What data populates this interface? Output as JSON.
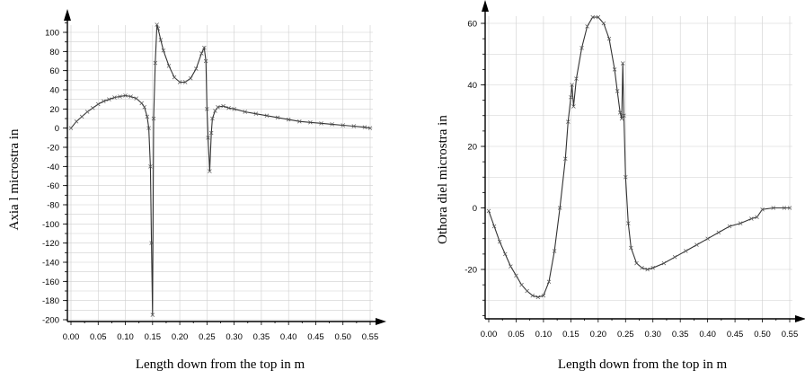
{
  "chart_data": [
    {
      "type": "line",
      "xlabel": "Length down from the top in m",
      "ylabel": "Axia l microstra in",
      "xlim": [
        0,
        0.56
      ],
      "ylim": [
        -200,
        110
      ],
      "xticks": [
        "0.00",
        "0.05",
        "0.10",
        "0.15",
        "0.20",
        "0.25",
        "0.30",
        "0.35",
        "0.40",
        "0.45",
        "0.50",
        "0.55"
      ],
      "yticks": [
        "100",
        "80",
        "60",
        "40",
        "20",
        "0",
        "-20",
        "-40",
        "-60",
        "-80",
        "-100",
        "-120",
        "-140",
        "-160",
        "-180",
        "-200"
      ],
      "grid": true,
      "series": [
        {
          "x": [
            0.0,
            0.01,
            0.02,
            0.03,
            0.04,
            0.05,
            0.06,
            0.07,
            0.08,
            0.09,
            0.1,
            0.11,
            0.12,
            0.13,
            0.135,
            0.14,
            0.143,
            0.146,
            0.148,
            0.15,
            0.152,
            0.155,
            0.158,
            0.16,
            0.165,
            0.17,
            0.18,
            0.19,
            0.2,
            0.21,
            0.22,
            0.23,
            0.24,
            0.245,
            0.248,
            0.25,
            0.252,
            0.255,
            0.258,
            0.26,
            0.265,
            0.27,
            0.28,
            0.29,
            0.3,
            0.32,
            0.34,
            0.36,
            0.38,
            0.4,
            0.42,
            0.44,
            0.46,
            0.48,
            0.5,
            0.52,
            0.54,
            0.55
          ],
          "y": [
            0,
            7,
            12,
            17,
            21,
            25,
            28,
            30,
            32,
            33,
            34,
            33,
            31,
            26,
            22,
            12,
            0,
            -40,
            -120,
            -195,
            10,
            68,
            108,
            104,
            92,
            81,
            65,
            53,
            48,
            48,
            52,
            62,
            78,
            84,
            70,
            20,
            -10,
            -45,
            -5,
            10,
            18,
            22,
            23,
            21,
            20,
            17,
            15,
            13,
            11,
            9,
            7,
            6,
            5,
            4,
            3,
            2,
            1,
            0
          ]
        }
      ]
    },
    {
      "type": "line",
      "xlabel": "Length down from the top in m",
      "ylabel": "Othora diel microstra in",
      "xlim": [
        0,
        0.56
      ],
      "ylim": [
        -35,
        65
      ],
      "xticks": [
        "0.00",
        "0.05",
        "0.10",
        "0.15",
        "0.20",
        "0.25",
        "0.30",
        "0.35",
        "0.40",
        "0.45",
        "0.50",
        "0.55"
      ],
      "yticks": [
        "60",
        "40",
        "20",
        "0",
        "-20"
      ],
      "grid": true,
      "series": [
        {
          "x": [
            0.0,
            0.01,
            0.02,
            0.03,
            0.04,
            0.05,
            0.06,
            0.07,
            0.08,
            0.09,
            0.1,
            0.11,
            0.12,
            0.13,
            0.14,
            0.145,
            0.15,
            0.152,
            0.155,
            0.16,
            0.17,
            0.18,
            0.19,
            0.2,
            0.21,
            0.22,
            0.23,
            0.235,
            0.24,
            0.243,
            0.245,
            0.247,
            0.25,
            0.255,
            0.26,
            0.27,
            0.28,
            0.29,
            0.3,
            0.32,
            0.34,
            0.36,
            0.38,
            0.4,
            0.42,
            0.44,
            0.46,
            0.48,
            0.49,
            0.5,
            0.52,
            0.54,
            0.55
          ],
          "y": [
            -1,
            -6,
            -11,
            -15,
            -19,
            -22,
            -25,
            -27,
            -28.5,
            -29,
            -28.5,
            -24,
            -14,
            0,
            16,
            28,
            36,
            40,
            33,
            42,
            52,
            59,
            62,
            62,
            60,
            55,
            45,
            38,
            31,
            29,
            47,
            30,
            10,
            -5,
            -13,
            -18,
            -19.5,
            -20,
            -19.5,
            -18,
            -16,
            -14,
            -12,
            -10,
            -8,
            -6,
            -5,
            -3.5,
            -3,
            -0.5,
            0,
            0,
            0
          ]
        }
      ]
    }
  ]
}
